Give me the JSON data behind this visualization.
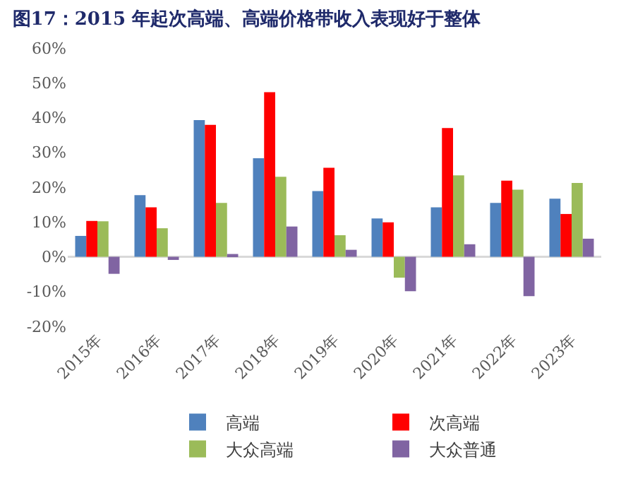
{
  "chart_data": {
    "type": "bar",
    "title": "图17：2015 年起次高端、高端价格带收入表现好于整体",
    "categories": [
      "2015年",
      "2016年",
      "2017年",
      "2018年",
      "2019年",
      "2020年",
      "2021年",
      "2022年",
      "2023年"
    ],
    "series": [
      {
        "name": "高端",
        "color": "#4f81bd",
        "values": [
          6.0,
          17.7,
          39.3,
          28.3,
          18.9,
          11.0,
          14.2,
          15.5,
          16.7
        ]
      },
      {
        "name": "次高端",
        "color": "#ff0000",
        "values": [
          10.3,
          14.2,
          37.9,
          47.3,
          25.6,
          9.9,
          37.0,
          21.9,
          12.3
        ]
      },
      {
        "name": "大众高端",
        "color": "#9bbb59",
        "values": [
          10.2,
          8.2,
          15.5,
          23.0,
          6.2,
          -6.0,
          23.4,
          19.3,
          21.2
        ]
      },
      {
        "name": "大众普通",
        "color": "#8064a2",
        "values": [
          -4.9,
          -0.9,
          0.8,
          8.7,
          2.0,
          -9.9,
          3.6,
          -11.3,
          5.2
        ]
      }
    ],
    "ylim": [
      -20,
      60
    ],
    "yticks": [
      {
        "value": -20,
        "label": "-20%"
      },
      {
        "value": -10,
        "label": "-10%"
      },
      {
        "value": 0,
        "label": "0%"
      },
      {
        "value": 10,
        "label": "10%"
      },
      {
        "value": 20,
        "label": "20%"
      },
      {
        "value": 30,
        "label": "30%"
      },
      {
        "value": 40,
        "label": "40%"
      },
      {
        "value": 50,
        "label": "50%"
      },
      {
        "value": 60,
        "label": "60%"
      }
    ],
    "ref_lines": [
      {
        "axis": "y",
        "value": 0,
        "color": "#d9d9d9"
      }
    ],
    "grid": false,
    "legend": "bottom"
  }
}
